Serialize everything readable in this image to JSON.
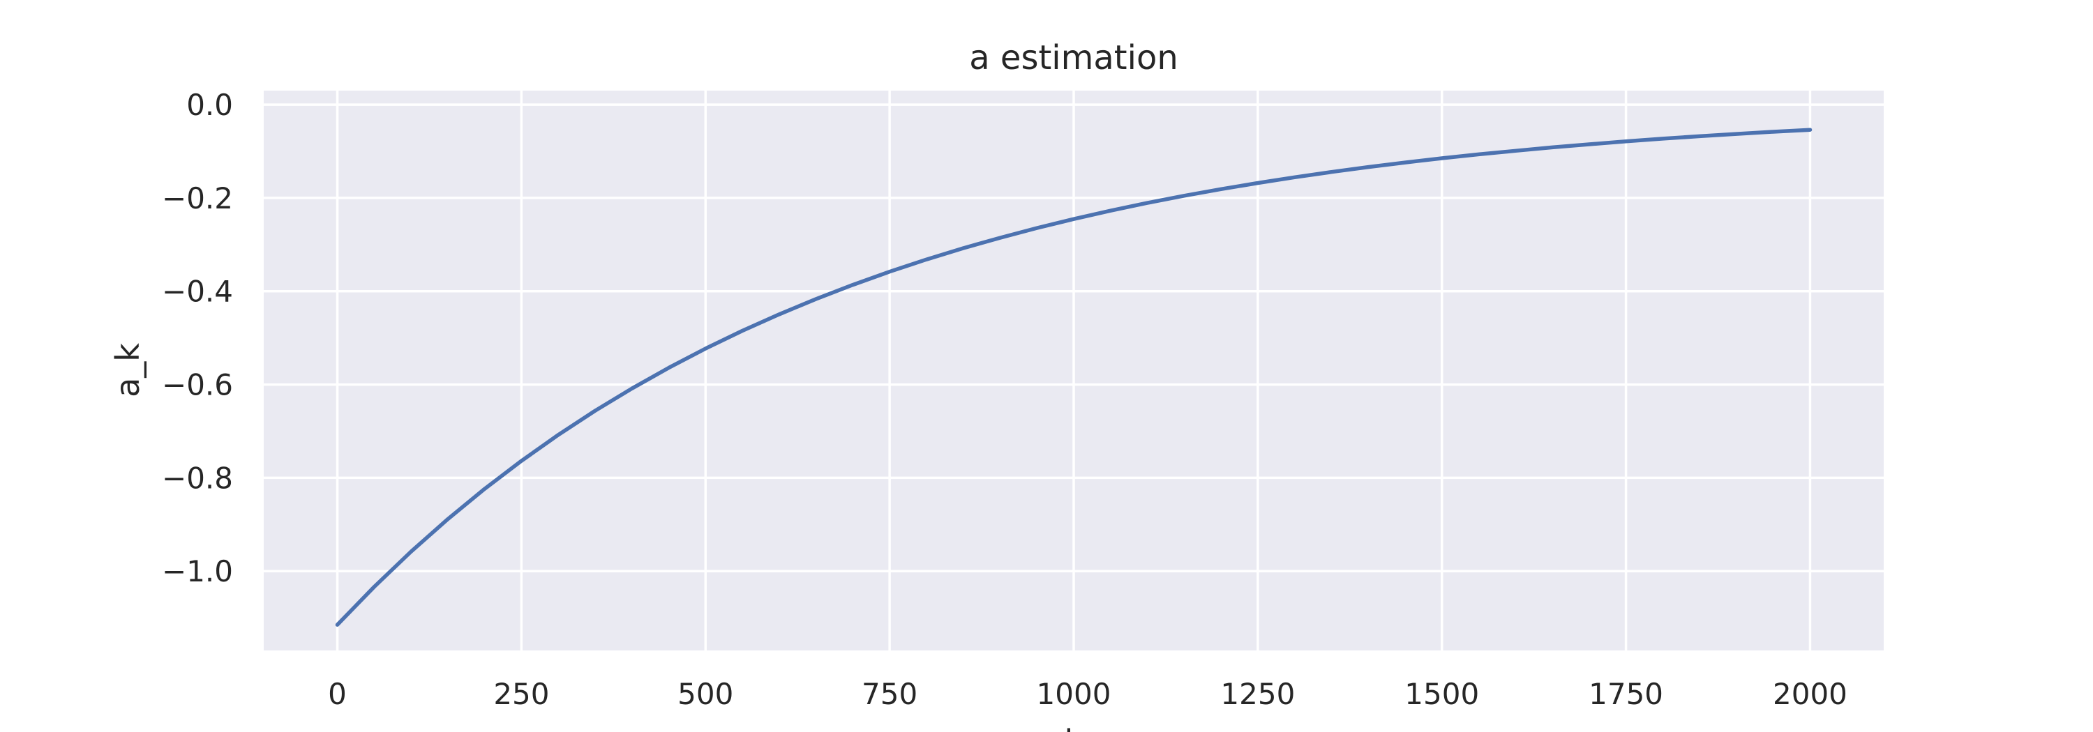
{
  "chart_data": {
    "type": "line",
    "title": "a estimation",
    "xlabel": "k",
    "ylabel": "a_k",
    "xlim": [
      -100,
      2100
    ],
    "ylim": [
      -1.17,
      0.03
    ],
    "x_ticks": [
      0,
      250,
      500,
      750,
      1000,
      1250,
      1500,
      1750,
      2000
    ],
    "y_ticks": [
      0.0,
      -0.2,
      -0.4,
      -0.6,
      -0.8,
      -1.0
    ],
    "x_tick_labels": [
      "0",
      "250",
      "500",
      "750",
      "1000",
      "1250",
      "1500",
      "1750",
      "2000"
    ],
    "y_tick_labels": [
      "0.0",
      "−0.2",
      "−0.4",
      "−0.6",
      "−0.8",
      "−1.0"
    ],
    "grid": true,
    "legend": "none",
    "colors": {
      "background": "#eaeaf2",
      "grid": "#ffffff",
      "line": "#4c72b0"
    },
    "series": [
      {
        "x": [
          0,
          50,
          100,
          150,
          200,
          250,
          300,
          350,
          400,
          450,
          500,
          550,
          600,
          650,
          700,
          750,
          800,
          850,
          900,
          950,
          1000,
          1050,
          1100,
          1150,
          1200,
          1250,
          1300,
          1350,
          1400,
          1450,
          1500,
          1550,
          1600,
          1650,
          1700,
          1750,
          1800,
          1850,
          1900,
          1950,
          2000
        ],
        "values": [
          -1.115,
          -1.0337,
          -0.9583,
          -0.8885,
          -0.8237,
          -0.7636,
          -0.7079,
          -0.6563,
          -0.6085,
          -0.5641,
          -0.523,
          -0.4848,
          -0.4495,
          -0.4167,
          -0.3863,
          -0.3581,
          -0.332,
          -0.3078,
          -0.2854,
          -0.2646,
          -0.2453,
          -0.2274,
          -0.2108,
          -0.1954,
          -0.1812,
          -0.168,
          -0.1557,
          -0.1444,
          -0.1338,
          -0.1241,
          -0.115,
          -0.1066,
          -0.0989,
          -0.0917,
          -0.085,
          -0.0788,
          -0.073,
          -0.0677,
          -0.0628,
          -0.0582,
          -0.054
        ]
      }
    ]
  }
}
